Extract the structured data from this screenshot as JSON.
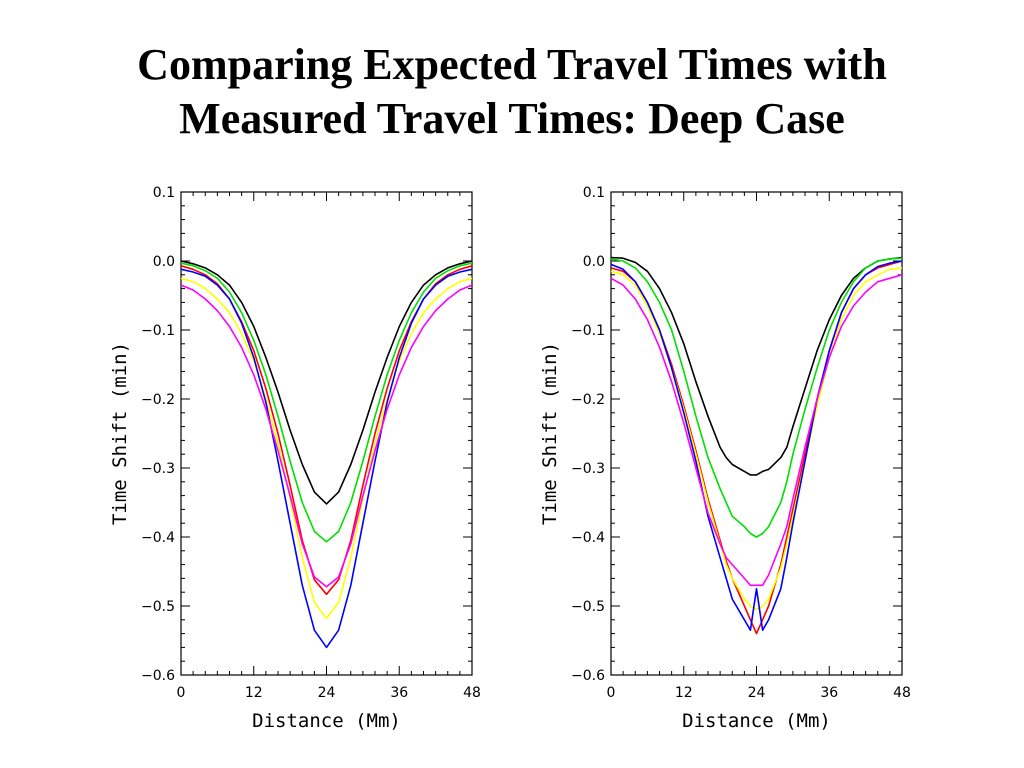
{
  "slide": {
    "title_line1": "Comparing Expected Travel Times with",
    "title_line2": "Measured Travel Times: Deep Case"
  },
  "chart_data": [
    {
      "type": "line",
      "panel": "left",
      "xlabel": "Distance (Mm)",
      "ylabel": "Time Shift (min)",
      "xlim": [
        0,
        48
      ],
      "ylim": [
        -0.6,
        0.1
      ],
      "xticks": [
        "0",
        "12",
        "24",
        "36",
        "48"
      ],
      "yticks": [
        "0.1",
        "0.0",
        "−0.1",
        "−0.2",
        "−0.3",
        "−0.4",
        "−0.5",
        "−0.6"
      ],
      "grid": false,
      "x": [
        0,
        2,
        4,
        6,
        8,
        10,
        12,
        14,
        16,
        18,
        20,
        22,
        24,
        26,
        28,
        30,
        32,
        34,
        36,
        38,
        40,
        42,
        44,
        46,
        48
      ],
      "series": [
        {
          "color": "#000000",
          "values": [
            0.0,
            -0.004,
            -0.01,
            -0.02,
            -0.035,
            -0.06,
            -0.095,
            -0.14,
            -0.19,
            -0.245,
            -0.295,
            -0.335,
            -0.352,
            -0.335,
            -0.295,
            -0.245,
            -0.19,
            -0.14,
            -0.095,
            -0.06,
            -0.035,
            -0.02,
            -0.01,
            -0.004,
            0.0
          ]
        },
        {
          "color": "#00e000",
          "values": [
            -0.003,
            -0.007,
            -0.014,
            -0.025,
            -0.045,
            -0.075,
            -0.115,
            -0.165,
            -0.225,
            -0.29,
            -0.35,
            -0.392,
            -0.407,
            -0.392,
            -0.35,
            -0.29,
            -0.225,
            -0.165,
            -0.115,
            -0.075,
            -0.045,
            -0.025,
            -0.014,
            -0.007,
            -0.003
          ]
        },
        {
          "color": "#ff0000",
          "values": [
            -0.007,
            -0.012,
            -0.02,
            -0.033,
            -0.055,
            -0.088,
            -0.13,
            -0.185,
            -0.25,
            -0.325,
            -0.405,
            -0.462,
            -0.483,
            -0.462,
            -0.405,
            -0.325,
            -0.25,
            -0.185,
            -0.13,
            -0.088,
            -0.055,
            -0.033,
            -0.02,
            -0.012,
            -0.007
          ]
        },
        {
          "color": "#ffff00",
          "values": [
            -0.025,
            -0.03,
            -0.04,
            -0.055,
            -0.075,
            -0.105,
            -0.145,
            -0.2,
            -0.265,
            -0.345,
            -0.43,
            -0.495,
            -0.518,
            -0.495,
            -0.43,
            -0.345,
            -0.265,
            -0.2,
            -0.145,
            -0.105,
            -0.075,
            -0.055,
            -0.04,
            -0.03,
            -0.025
          ]
        },
        {
          "color": "#0000ff",
          "values": [
            -0.012,
            -0.016,
            -0.022,
            -0.035,
            -0.055,
            -0.09,
            -0.14,
            -0.205,
            -0.29,
            -0.38,
            -0.47,
            -0.535,
            -0.56,
            -0.535,
            -0.47,
            -0.38,
            -0.29,
            -0.205,
            -0.14,
            -0.09,
            -0.055,
            -0.035,
            -0.022,
            -0.016,
            -0.012
          ]
        },
        {
          "color": "#ff00ff",
          "values": [
            -0.035,
            -0.042,
            -0.055,
            -0.072,
            -0.095,
            -0.125,
            -0.165,
            -0.215,
            -0.275,
            -0.34,
            -0.41,
            -0.458,
            -0.472,
            -0.458,
            -0.41,
            -0.34,
            -0.275,
            -0.215,
            -0.165,
            -0.125,
            -0.095,
            -0.072,
            -0.055,
            -0.042,
            -0.035
          ]
        }
      ]
    },
    {
      "type": "line",
      "panel": "right",
      "xlabel": "Distance (Mm)",
      "ylabel": "Time Shift (min)",
      "xlim": [
        0,
        48
      ],
      "ylim": [
        -0.6,
        0.1
      ],
      "xticks": [
        "0",
        "12",
        "24",
        "36",
        "48"
      ],
      "yticks": [
        "0.1",
        "0.0",
        "−0.1",
        "−0.2",
        "−0.3",
        "−0.4",
        "−0.5",
        "−0.6"
      ],
      "grid": false,
      "x": [
        0,
        2,
        4,
        6,
        8,
        10,
        12,
        14,
        16,
        18,
        19,
        20,
        22,
        23,
        24,
        25,
        26,
        28,
        29,
        30,
        32,
        34,
        36,
        38,
        40,
        42,
        44,
        46,
        48
      ],
      "series": [
        {
          "color": "#000000",
          "values": [
            0.005,
            0.004,
            -0.002,
            -0.015,
            -0.04,
            -0.075,
            -0.12,
            -0.175,
            -0.225,
            -0.27,
            -0.285,
            -0.295,
            -0.305,
            -0.31,
            -0.31,
            -0.305,
            -0.302,
            -0.285,
            -0.27,
            -0.24,
            -0.185,
            -0.13,
            -0.085,
            -0.05,
            -0.025,
            -0.01,
            0.0,
            0.003,
            0.005
          ]
        },
        {
          "color": "#00e000",
          "values": [
            0.003,
            0.0,
            -0.01,
            -0.03,
            -0.06,
            -0.1,
            -0.16,
            -0.225,
            -0.285,
            -0.33,
            -0.35,
            -0.37,
            -0.385,
            -0.395,
            -0.4,
            -0.395,
            -0.385,
            -0.35,
            -0.32,
            -0.28,
            -0.215,
            -0.155,
            -0.1,
            -0.06,
            -0.03,
            -0.01,
            0.0,
            0.003,
            0.004
          ]
        },
        {
          "color": "#ff0000",
          "values": [
            -0.01,
            -0.015,
            -0.03,
            -0.06,
            -0.1,
            -0.15,
            -0.21,
            -0.275,
            -0.345,
            -0.405,
            -0.435,
            -0.46,
            -0.5,
            -0.52,
            -0.54,
            -0.52,
            -0.5,
            -0.44,
            -0.4,
            -0.36,
            -0.28,
            -0.2,
            -0.13,
            -0.075,
            -0.04,
            -0.02,
            -0.01,
            -0.005,
            0.0
          ]
        },
        {
          "color": "#ffff00",
          "values": [
            -0.015,
            -0.02,
            -0.035,
            -0.065,
            -0.105,
            -0.155,
            -0.215,
            -0.28,
            -0.35,
            -0.41,
            -0.44,
            -0.46,
            -0.49,
            -0.5,
            -0.505,
            -0.5,
            -0.49,
            -0.445,
            -0.41,
            -0.37,
            -0.29,
            -0.21,
            -0.14,
            -0.085,
            -0.05,
            -0.03,
            -0.02,
            -0.012,
            -0.01
          ]
        },
        {
          "color": "#0000ff",
          "values": [
            -0.005,
            -0.012,
            -0.03,
            -0.06,
            -0.1,
            -0.155,
            -0.22,
            -0.29,
            -0.37,
            -0.43,
            -0.46,
            -0.49,
            -0.52,
            -0.535,
            -0.475,
            -0.535,
            -0.52,
            -0.475,
            -0.43,
            -0.38,
            -0.29,
            -0.2,
            -0.13,
            -0.075,
            -0.04,
            -0.02,
            -0.008,
            -0.003,
            0.0
          ]
        },
        {
          "color": "#ff00ff",
          "values": [
            -0.025,
            -0.035,
            -0.055,
            -0.085,
            -0.125,
            -0.175,
            -0.235,
            -0.3,
            -0.365,
            -0.41,
            -0.43,
            -0.44,
            -0.46,
            -0.47,
            -0.47,
            -0.47,
            -0.455,
            -0.41,
            -0.385,
            -0.345,
            -0.27,
            -0.2,
            -0.14,
            -0.095,
            -0.065,
            -0.045,
            -0.03,
            -0.025,
            -0.02
          ]
        }
      ]
    }
  ]
}
